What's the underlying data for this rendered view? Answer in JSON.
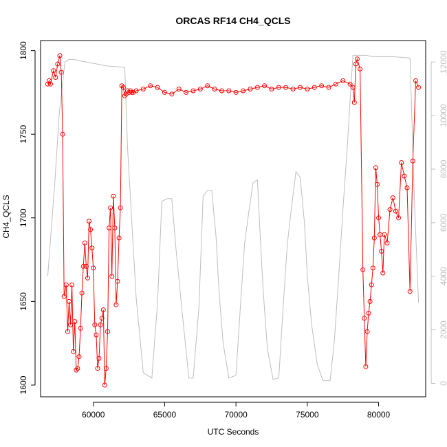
{
  "chart_data": {
    "type": "line",
    "title": "ORCAS RF14 CH4_QCLS",
    "xlabel": "UTC Seconds",
    "ylabel": "CH4_QCLS",
    "xlim": [
      56300,
      83300
    ],
    "ylim": [
      1593,
      1806
    ],
    "y2lim": [
      -500,
      12800
    ],
    "x_ticks": [
      60000,
      65000,
      70000,
      75000,
      80000
    ],
    "y_ticks": [
      1600,
      1650,
      1700,
      1750,
      1800
    ],
    "y2_ticks": [
      0,
      2000,
      4000,
      6000,
      8000,
      10000,
      12000
    ],
    "legend": "none",
    "grid": false,
    "colors": {
      "ch4": "#ff0000",
      "altitude": "#bebebe"
    },
    "series": [
      {
        "name": "",
        "axis": "left",
        "style": "line-with-open-circles",
        "color": "#ff0000",
        "x": [
          56800,
          56900,
          57000,
          57200,
          57350,
          57500,
          57650,
          57750,
          57850,
          57950,
          58100,
          58200,
          58300,
          58400,
          58500,
          58600,
          58700,
          58800,
          58900,
          59000,
          59100,
          59200,
          59300,
          59400,
          59500,
          59600,
          59700,
          59800,
          59900,
          60000,
          60100,
          60200,
          60300,
          60400,
          60500,
          60600,
          60700,
          60800,
          60900,
          61000,
          61100,
          61200,
          61300,
          61400,
          61500,
          61600,
          61700,
          61800,
          61900,
          62000,
          62100,
          62200,
          62300,
          62400,
          62500,
          62600,
          62700,
          62800,
          63000,
          63500,
          64000,
          64500,
          65000,
          65500,
          66000,
          66500,
          67000,
          67500,
          68000,
          68500,
          69000,
          69500,
          70000,
          70500,
          71000,
          71500,
          72000,
          72500,
          73000,
          73500,
          74000,
          74500,
          75000,
          75500,
          76000,
          76500,
          77000,
          77500,
          78000,
          78200,
          78300,
          78400,
          78500,
          78700,
          78900,
          79000,
          79100,
          79200,
          79300,
          79400,
          79500,
          79600,
          79700,
          79800,
          79900,
          80000,
          80100,
          80200,
          80300,
          80400,
          80600,
          80800,
          81000,
          81200,
          81400,
          81600,
          81800,
          82000,
          82200,
          82400,
          82600,
          82800
        ],
        "values": [
          1780,
          1782,
          1780,
          1788,
          1784,
          1792,
          1797,
          1787,
          1750,
          1653,
          1660,
          1632,
          1650,
          1636,
          1660,
          1620,
          1638,
          1609,
          1610,
          1617,
          1634,
          1655,
          1671,
          1685,
          1671,
          1664,
          1698,
          1693,
          1682,
          1670,
          1636,
          1630,
          1610,
          1616,
          1636,
          1640,
          1645,
          1600,
          1610,
          1632,
          1694,
          1706,
          1665,
          1713,
          1694,
          1648,
          1662,
          1688,
          1706,
          1779,
          1778,
          1773,
          1774,
          1776,
          1775,
          1776,
          1775,
          1775,
          1776,
          1777,
          1779,
          1778,
          1775,
          1774,
          1777,
          1775,
          1776,
          1777,
          1779,
          1777,
          1776,
          1776,
          1775,
          1776,
          1777,
          1778,
          1779,
          1777,
          1778,
          1778,
          1777,
          1778,
          1777,
          1778,
          1779,
          1778,
          1780,
          1782,
          1780,
          1778,
          1769,
          1792,
          1795,
          1789,
          1669,
          1640,
          1611,
          1632,
          1643,
          1650,
          1660,
          1670,
          1688,
          1730,
          1720,
          1700,
          1690,
          1680,
          1667,
          1690,
          1685,
          1705,
          1712,
          1704,
          1700,
          1733,
          1725,
          1718,
          1656,
          1734,
          1782,
          1778
        ]
      },
      {
        "name": "",
        "axis": "right",
        "style": "line",
        "color": "#bebebe",
        "x": [
          56800,
          57300,
          57600,
          58000,
          58300,
          58600,
          59000,
          60000,
          61000,
          62200,
          62400,
          62700,
          63000,
          63500,
          63800,
          64100,
          64500,
          64800,
          65200,
          65500,
          65800,
          66200,
          66700,
          67000,
          67400,
          67700,
          68000,
          68300,
          68600,
          68800,
          69100,
          69500,
          70000,
          70300,
          70600,
          70900,
          71200,
          71500,
          71700,
          71900,
          72200,
          72600,
          73000,
          73300,
          73600,
          73900,
          74200,
          74500,
          74800,
          75000,
          75300,
          75700,
          76100,
          76600,
          76900,
          77200,
          77500,
          77800,
          78200,
          78600,
          79100,
          79600,
          80000,
          81000,
          82200,
          82500,
          82800
        ],
        "values": [
          4000,
          7500,
          10000,
          12000,
          12100,
          12100,
          12050,
          11950,
          11850,
          11800,
          8800,
          6000,
          3200,
          400,
          300,
          200,
          3000,
          6800,
          6900,
          6900,
          5000,
          2800,
          200,
          200,
          2800,
          7000,
          7200,
          7200,
          5500,
          3500,
          1500,
          200,
          300,
          2800,
          5200,
          6400,
          7500,
          7600,
          5500,
          3500,
          1300,
          150,
          200,
          2800,
          5200,
          6600,
          7900,
          7700,
          6000,
          4000,
          2200,
          700,
          100,
          100,
          1600,
          4000,
          6500,
          8800,
          12250,
          12250,
          12250,
          12200,
          12200,
          12200,
          12150,
          7000,
          3000
        ]
      }
    ]
  }
}
